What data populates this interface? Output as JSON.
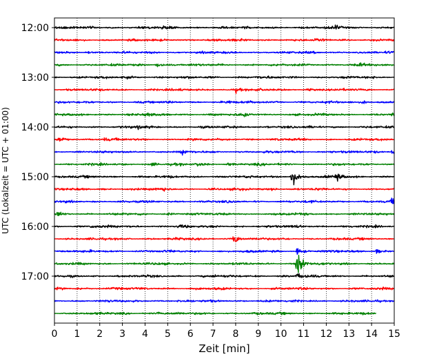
{
  "chart_data": {
    "type": "line",
    "title": "",
    "xlabel": "Zeit  [min]",
    "ylabel": "UTC (Lokalzeit = UTC + 01:00)",
    "xlim": [
      0,
      15
    ],
    "x_ticks": [
      "0",
      "1",
      "2",
      "3",
      "4",
      "5",
      "6",
      "7",
      "8",
      "9",
      "10",
      "11",
      "12",
      "13",
      "14",
      "15"
    ],
    "y_ticks": [
      {
        "label": "12:00",
        "row": 0
      },
      {
        "label": "13:00",
        "row": 4
      },
      {
        "label": "14:00",
        "row": 8
      },
      {
        "label": "15:00",
        "row": 12
      },
      {
        "label": "16:00",
        "row": 16
      },
      {
        "label": "17:00",
        "row": 20
      }
    ],
    "grid": "vertical dotted lines at each minute",
    "trace_interval_minutes": 15,
    "colors_cycle": [
      "#000000",
      "#ff0000",
      "#0000ff",
      "#008000"
    ],
    "series": [
      {
        "start": "12:00",
        "color": "#000000",
        "events": [
          {
            "t": 4.85,
            "amp": 0.4
          },
          {
            "t": 12.4,
            "amp": 0.6
          }
        ]
      },
      {
        "start": "12:15",
        "color": "#ff0000",
        "events": [
          {
            "t": 11.5,
            "amp": 0.35
          }
        ]
      },
      {
        "start": "12:30",
        "color": "#0000ff",
        "events": [
          {
            "t": 1.4,
            "amp": 0.35
          }
        ]
      },
      {
        "start": "12:45",
        "color": "#008000",
        "events": [
          {
            "t": 4.5,
            "amp": 0.7
          },
          {
            "t": 13.5,
            "amp": 0.4
          }
        ]
      },
      {
        "start": "13:00",
        "color": "#000000",
        "events": [
          {
            "t": 3.0,
            "amp": 0.45
          },
          {
            "t": 8.8,
            "amp": 0.4
          }
        ]
      },
      {
        "start": "13:15",
        "color": "#ff0000",
        "events": [
          {
            "t": 8.0,
            "amp": 0.6
          },
          {
            "t": 11.2,
            "amp": 0.3
          }
        ]
      },
      {
        "start": "13:30",
        "color": "#0000ff",
        "events": [
          {
            "t": 7.6,
            "amp": 0.5
          },
          {
            "t": 13.6,
            "amp": 0.6
          }
        ]
      },
      {
        "start": "13:45",
        "color": "#008000",
        "events": [
          {
            "t": 4.0,
            "amp": 0.5
          },
          {
            "t": 8.35,
            "amp": 0.8
          },
          {
            "t": 14.9,
            "amp": 0.5
          }
        ]
      },
      {
        "start": "14:00",
        "color": "#000000",
        "events": [
          {
            "t": 3.7,
            "amp": 0.45
          },
          {
            "t": 9.4,
            "amp": 0.35
          }
        ]
      },
      {
        "start": "14:15",
        "color": "#ff0000",
        "events": [
          {
            "t": 0.2,
            "amp": 0.8
          },
          {
            "t": 2.2,
            "amp": 0.35
          }
        ]
      },
      {
        "start": "14:30",
        "color": "#0000ff",
        "events": [
          {
            "t": 5.6,
            "amp": 0.5
          },
          {
            "t": 12.1,
            "amp": 0.45
          },
          {
            "t": 14.9,
            "amp": 0.6
          }
        ]
      },
      {
        "start": "14:45",
        "color": "#008000",
        "events": [
          {
            "t": 4.3,
            "amp": 0.4
          },
          {
            "t": 6.3,
            "amp": 0.5
          },
          {
            "t": 7.6,
            "amp": 0.45
          }
        ]
      },
      {
        "start": "15:00",
        "color": "#000000",
        "events": [
          {
            "t": 10.45,
            "amp": 3.2
          },
          {
            "t": 12.4,
            "amp": 1.3
          }
        ]
      },
      {
        "start": "15:15",
        "color": "#ff0000",
        "events": [
          {
            "t": 4.75,
            "amp": 0.5
          },
          {
            "t": 9.6,
            "amp": 0.4
          }
        ]
      },
      {
        "start": "15:30",
        "color": "#0000ff",
        "events": [
          {
            "t": 14.9,
            "amp": 0.9
          }
        ]
      },
      {
        "start": "15:45",
        "color": "#008000",
        "events": [
          {
            "t": 0.1,
            "amp": 0.7
          },
          {
            "t": 5.0,
            "amp": 0.3
          }
        ]
      },
      {
        "start": "16:00",
        "color": "#000000",
        "events": [
          {
            "t": 1.6,
            "amp": 0.6
          },
          {
            "t": 5.45,
            "amp": 0.45
          },
          {
            "t": 10.7,
            "amp": 0.4
          }
        ]
      },
      {
        "start": "16:15",
        "color": "#ff0000",
        "events": [
          {
            "t": 7.9,
            "amp": 1.6
          }
        ]
      },
      {
        "start": "16:30",
        "color": "#0000ff",
        "events": [
          {
            "t": 10.7,
            "amp": 1.0
          },
          {
            "t": 14.2,
            "amp": 0.6
          }
        ]
      },
      {
        "start": "16:45",
        "color": "#008000",
        "events": [
          {
            "t": 10.7,
            "amp": 4.0
          }
        ]
      },
      {
        "start": "17:00",
        "color": "#000000",
        "events": [
          {
            "t": 7.0,
            "amp": 0.3
          },
          {
            "t": 10.7,
            "amp": 0.8
          }
        ]
      },
      {
        "start": "17:15",
        "color": "#ff0000",
        "events": [
          {
            "t": 1.0,
            "amp": 0.4
          }
        ]
      },
      {
        "start": "17:30",
        "color": "#0000ff",
        "events": [
          {
            "t": 5.5,
            "amp": 0.25
          }
        ]
      },
      {
        "start": "17:45",
        "color": "#008000",
        "end_x": 14.2,
        "events": [
          {
            "t": 4.55,
            "amp": 0.35
          }
        ]
      }
    ]
  }
}
